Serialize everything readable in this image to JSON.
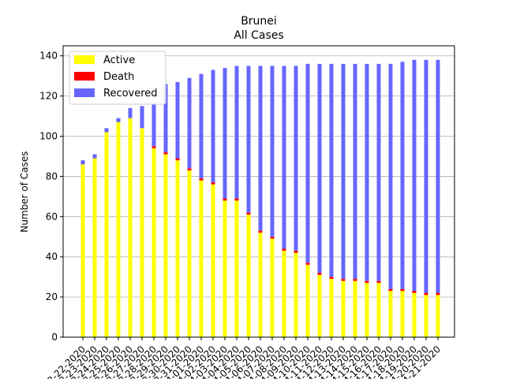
{
  "chart_data": {
    "type": "bar",
    "stacked": true,
    "title": "Brunei",
    "subtitle": "All Cases",
    "xlabel": "",
    "ylabel": "Number of Cases",
    "ylim": [
      0,
      145
    ],
    "yticks": [
      0,
      20,
      40,
      60,
      80,
      100,
      120,
      140
    ],
    "grid": "horizontal",
    "legend_position": "top-left",
    "categories": [
      "03-22-2020",
      "03-23-2020",
      "03-24-2020",
      "03-25-2020",
      "03-26-2020",
      "03-27-2020",
      "03-28-2020",
      "03-29-2020",
      "03-30-2020",
      "03-31-2020",
      "04-01-2020",
      "04-02-2020",
      "04-03-2020",
      "04-04-2020",
      "04-05-2020",
      "04-06-2020",
      "04-07-2020",
      "04-08-2020",
      "04-09-2020",
      "04-10-2020",
      "04-11-2020",
      "04-12-2020",
      "04-13-2020",
      "04-14-2020",
      "04-15-2020",
      "04-16-2020",
      "04-17-2020",
      "04-18-2020",
      "04-19-2020",
      "04-20-2020",
      "04-21-2020"
    ],
    "x_tick_labels_visible": [
      "03-22-2020",
      "03-23-2020",
      "03-24-2020",
      "03-25-2020",
      "03-26-2020",
      "03-27-2020",
      "03-28-2020",
      "03-29-2020",
      "03-30-2020",
      "03-31-2020",
      "04-01-2020",
      "04-02-2020",
      "04-03-2020",
      "04-04-2020",
      "04-05-2020",
      "04-06-2020",
      "04-07-2020",
      "04-08-2020",
      "04-09-2020",
      "04-10-2020",
      "04-11-2020",
      "04-12-2020",
      "04-13-2020",
      "04-14-2020",
      "04-15-2020",
      "04-16-2020",
      "04-17-2020",
      "04-18-2020",
      "04-19-2020",
      "04-20-2020",
      "04-21-2020"
    ],
    "series": [
      {
        "name": "Active",
        "color": "#ffff00",
        "values": [
          86,
          89,
          102,
          107,
          109,
          104,
          94,
          91,
          88,
          83,
          78,
          76,
          68,
          68,
          61,
          52,
          49,
          43,
          42,
          36,
          31,
          29,
          28,
          28,
          27,
          27,
          23,
          23,
          22,
          21,
          21
        ]
      },
      {
        "name": "Death",
        "color": "#ff0000",
        "values": [
          0,
          0,
          0,
          0,
          0,
          0,
          1,
          1,
          1,
          1,
          1,
          1,
          1,
          1,
          1,
          1,
          1,
          1,
          1,
          1,
          1,
          1,
          1,
          1,
          1,
          1,
          1,
          1,
          1,
          1,
          1
        ]
      },
      {
        "name": "Recovered",
        "color": "#6666ff",
        "values": [
          2,
          2,
          2,
          2,
          5,
          11,
          21,
          34,
          38,
          45,
          52,
          56,
          65,
          66,
          73,
          82,
          85,
          91,
          92,
          99,
          104,
          106,
          107,
          107,
          108,
          108,
          112,
          113,
          115,
          116,
          116
        ]
      }
    ]
  }
}
